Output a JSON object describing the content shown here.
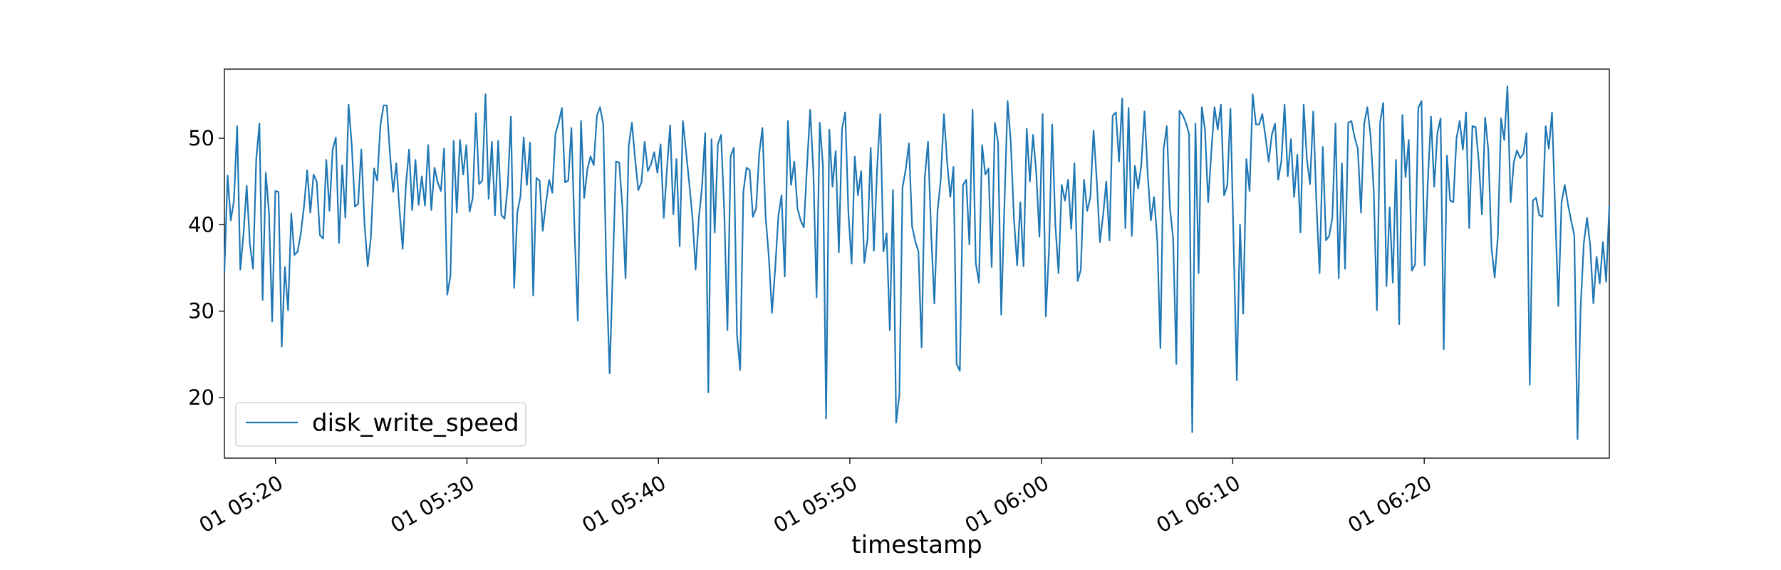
{
  "chart_data": {
    "type": "line",
    "title": "",
    "xlabel": "timestamp",
    "ylabel": "",
    "x_start": "01 05:17:20",
    "x_end": "01 06:29:40",
    "xlim": [
      "01 05:17:20",
      "01 06:29:40"
    ],
    "ylim": [
      13,
      58
    ],
    "x_ticks": [
      "01 05:20",
      "01 05:30",
      "01 05:40",
      "01 05:50",
      "01 06:00",
      "01 06:10",
      "01 06:20"
    ],
    "y_ticks": [
      20,
      30,
      40,
      50
    ],
    "grid": false,
    "legend_position": "lower-left",
    "series": [
      {
        "name": "disk_write_speed",
        "color": "#1f77b4",
        "values": [
          34.6,
          45.7,
          40.5,
          42.8,
          51.4,
          34.8,
          38.9,
          44.5,
          37.8,
          34.9,
          47.6,
          51.7,
          31.3,
          46.0,
          41.4,
          28.8,
          43.9,
          43.8,
          25.9,
          35.1,
          30.1,
          41.3,
          36.5,
          36.9,
          39.0,
          42.1,
          46.3,
          41.4,
          45.8,
          45.0,
          38.8,
          38.4,
          47.5,
          41.6,
          48.7,
          50.1,
          37.9,
          46.9,
          40.8,
          53.9,
          49.2,
          42.1,
          42.4,
          48.7,
          40.2,
          35.2,
          38.5,
          46.5,
          45.1,
          51.5,
          53.8,
          53.8,
          48.2,
          43.8,
          47.1,
          41.7,
          37.2,
          44.5,
          48.7,
          41.7,
          47.5,
          42.3,
          45.6,
          42.2,
          49.2,
          41.7,
          46.6,
          44.9,
          43.9,
          48.8,
          31.9,
          34.1,
          49.7,
          41.4,
          49.8,
          45.8,
          49.2,
          41.5,
          43.1,
          52.9,
          44.7,
          45.1,
          55.1,
          43.0,
          49.6,
          41.1,
          49.7,
          41.1,
          40.7,
          44.5,
          52.5,
          32.7,
          41.4,
          43.3,
          50.1,
          44.6,
          49.5,
          31.8,
          45.4,
          45.1,
          39.3,
          42.5,
          45.2,
          43.7,
          50.6,
          51.8,
          53.5,
          44.9,
          45.1,
          51.2,
          39.1,
          28.9,
          52.0,
          43.1,
          46.4,
          47.9,
          46.9,
          52.6,
          53.6,
          51.6,
          34.2,
          22.8,
          34.9,
          47.3,
          47.2,
          42.1,
          33.8,
          49.1,
          51.8,
          47.6,
          44.0,
          44.9,
          49.6,
          46.2,
          47.0,
          48.4,
          46.0,
          49.3,
          40.8,
          46.4,
          51.5,
          41.2,
          47.6,
          37.5,
          52.0,
          48.5,
          44.8,
          40.9,
          34.8,
          40.7,
          44.3,
          50.6,
          20.6,
          49.9,
          39.1,
          49.3,
          50.4,
          41.6,
          27.8,
          47.9,
          48.9,
          27.3,
          23.2,
          43.8,
          46.6,
          46.3,
          40.9,
          41.9,
          48.3,
          51.2,
          40.9,
          36.3,
          29.8,
          34.9,
          41.0,
          43.4,
          34.0,
          52.0,
          44.6,
          47.3,
          41.9,
          40.5,
          39.7,
          46.8,
          53.3,
          46.1,
          31.6,
          51.8,
          46.8,
          17.6,
          51.0,
          44.4,
          48.5,
          36.8,
          51.1,
          53.0,
          41.4,
          35.5,
          47.9,
          43.4,
          46.2,
          35.6,
          38.3,
          48.9,
          37.0,
          46.4,
          52.8,
          36.9,
          39.0,
          27.8,
          44.0,
          17.1,
          20.3,
          44.3,
          46.4,
          49.4,
          39.8,
          38.1,
          36.9,
          25.8,
          45.5,
          49.6,
          38.9,
          30.9,
          41.6,
          45.2,
          52.8,
          47.3,
          43.2,
          46.7,
          23.9,
          23.1,
          44.6,
          45.2,
          37.7,
          53.3,
          35.6,
          33.3,
          49.2,
          45.8,
          46.5,
          35.1,
          51.8,
          49.5,
          29.6,
          42.2,
          54.3,
          49.6,
          40.7,
          35.3,
          42.6,
          35.2,
          51.1,
          45.0,
          50.4,
          46.0,
          38.6,
          52.8,
          29.4,
          37.0,
          51.6,
          40.0,
          34.4,
          44.6,
          42.8,
          45.2,
          39.5,
          47.1,
          33.5,
          34.8,
          45.2,
          41.6,
          43.2,
          50.9,
          45.2,
          38.0,
          41.1,
          45.0,
          38.2,
          52.6,
          53.0,
          47.3,
          54.6,
          39.6,
          53.5,
          38.7,
          46.8,
          44.2,
          46.9,
          53.1,
          45.9,
          40.5,
          43.2,
          38.3,
          25.7,
          48.7,
          51.4,
          41.9,
          38.4,
          23.9,
          53.2,
          52.7,
          51.8,
          50.5,
          16.0,
          51.7,
          34.4,
          53.6,
          51.0,
          42.6,
          48.5,
          53.6,
          51.0,
          53.9,
          43.4,
          44.5,
          53.4,
          37.8,
          22.0,
          40.0,
          29.7,
          47.6,
          43.9,
          55.1,
          51.6,
          51.6,
          52.8,
          50.2,
          47.3,
          50.4,
          51.7,
          45.2,
          47.4,
          53.9,
          45.6,
          49.9,
          43.2,
          48.1,
          39.1,
          53.9,
          47.6,
          44.7,
          53.1,
          42.5,
          34.4,
          49.0,
          38.2,
          38.7,
          40.8,
          51.7,
          33.8,
          47.1,
          34.9,
          51.8,
          52.0,
          50.1,
          48.8,
          41.4,
          51.7,
          53.6,
          50.3,
          44.1,
          30.1,
          51.8,
          54.1,
          32.9,
          42.0,
          33.3,
          47.5,
          28.5,
          52.7,
          45.5,
          49.8,
          34.7,
          35.4,
          53.5,
          54.3,
          35.3,
          45.0,
          52.5,
          44.4,
          50.6,
          52.3,
          25.6,
          48.0,
          42.8,
          42.6,
          50.0,
          52.0,
          48.7,
          53.0,
          39.6,
          51.4,
          51.3,
          47.3,
          41.2,
          52.4,
          48.6,
          37.3,
          33.9,
          38.7,
          52.3,
          49.8,
          56.0,
          42.6,
          47.2,
          48.6,
          47.7,
          48.2,
          50.6,
          21.5,
          42.8,
          43.1,
          41.1,
          40.9,
          51.4,
          48.8,
          53.0,
          41.6,
          30.6,
          42.6,
          44.6,
          42.4,
          40.5,
          38.8,
          15.2,
          30.5,
          37.9,
          40.8,
          37.6,
          30.9,
          36.3,
          33.2,
          38.0,
          33.4,
          42.2
        ]
      }
    ]
  }
}
